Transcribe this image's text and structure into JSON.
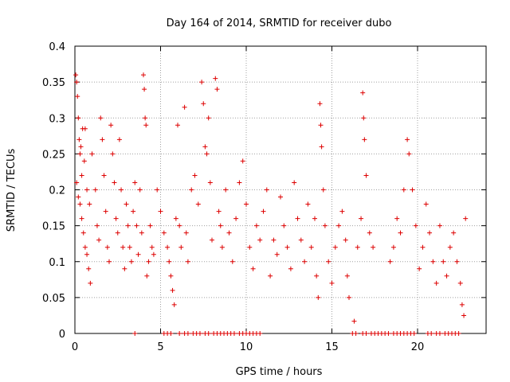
{
  "chart_data": {
    "type": "scatter",
    "title": "Day 164 of 2014, SRMTID for receiver dubo",
    "xlabel": "GPS time / hours",
    "ylabel": "SRMTID / TECUs",
    "xlim": [
      0,
      24
    ],
    "ylim": [
      0,
      0.4
    ],
    "x_ticks": [
      0,
      5,
      10,
      15,
      20
    ],
    "x_tick_labels": [
      "0",
      "5",
      "10",
      "15",
      "20"
    ],
    "y_ticks": [
      0,
      0.05,
      0.1,
      0.15,
      0.2,
      0.25,
      0.3,
      0.35,
      0.4
    ],
    "y_tick_labels": [
      "0",
      "0.05",
      "0.1",
      "0.15",
      "0.2",
      "0.25",
      "0.3",
      "0.35",
      "0.4"
    ],
    "grid": true,
    "marker": "plus",
    "series": [
      {
        "name": "SRMTID",
        "color": "#dd0000",
        "points": [
          [
            0.05,
            0.36
          ],
          [
            0.1,
            0.35
          ],
          [
            0.15,
            0.33
          ],
          [
            0.2,
            0.3
          ],
          [
            0.25,
            0.27
          ],
          [
            0.3,
            0.25
          ],
          [
            0.35,
            0.26
          ],
          [
            0.45,
            0.285
          ],
          [
            0.6,
            0.285
          ],
          [
            0.1,
            0.21
          ],
          [
            0.2,
            0.19
          ],
          [
            0.3,
            0.18
          ],
          [
            0.4,
            0.16
          ],
          [
            0.5,
            0.14
          ],
          [
            0.6,
            0.12
          ],
          [
            0.7,
            0.11
          ],
          [
            0.8,
            0.09
          ],
          [
            0.9,
            0.07
          ],
          [
            0.4,
            0.22
          ],
          [
            0.55,
            0.24
          ],
          [
            0.7,
            0.2
          ],
          [
            0.85,
            0.18
          ],
          [
            1.0,
            0.25
          ],
          [
            1.2,
            0.2
          ],
          [
            1.3,
            0.15
          ],
          [
            1.4,
            0.13
          ],
          [
            1.5,
            0.3
          ],
          [
            1.6,
            0.27
          ],
          [
            1.7,
            0.22
          ],
          [
            1.8,
            0.17
          ],
          [
            1.9,
            0.12
          ],
          [
            2.0,
            0.1
          ],
          [
            2.1,
            0.29
          ],
          [
            2.2,
            0.25
          ],
          [
            2.3,
            0.21
          ],
          [
            2.4,
            0.16
          ],
          [
            2.5,
            0.14
          ],
          [
            2.6,
            0.27
          ],
          [
            2.7,
            0.2
          ],
          [
            2.8,
            0.12
          ],
          [
            2.9,
            0.09
          ],
          [
            3.0,
            0.18
          ],
          [
            3.1,
            0.15
          ],
          [
            3.2,
            0.12
          ],
          [
            3.3,
            0.1
          ],
          [
            3.4,
            0.17
          ],
          [
            3.5,
            0.21
          ],
          [
            3.6,
            0.15
          ],
          [
            3.7,
            0.11
          ],
          [
            3.8,
            0.2
          ],
          [
            3.9,
            0.14
          ],
          [
            4.0,
            0.36
          ],
          [
            4.05,
            0.34
          ],
          [
            4.1,
            0.3
          ],
          [
            4.15,
            0.29
          ],
          [
            4.2,
            0.08
          ],
          [
            4.3,
            0.1
          ],
          [
            4.4,
            0.15
          ],
          [
            4.5,
            0.12
          ],
          [
            4.6,
            0.11
          ],
          [
            4.8,
            0.2
          ],
          [
            5.0,
            0.17
          ],
          [
            5.2,
            0.14
          ],
          [
            5.4,
            0.12
          ],
          [
            5.5,
            0.1
          ],
          [
            5.6,
            0.08
          ],
          [
            5.7,
            0.06
          ],
          [
            5.8,
            0.04
          ],
          [
            5.9,
            0.16
          ],
          [
            6.0,
            0.29
          ],
          [
            6.1,
            0.15
          ],
          [
            6.2,
            0.12
          ],
          [
            6.4,
            0.315
          ],
          [
            6.5,
            0.14
          ],
          [
            6.6,
            0.1
          ],
          [
            6.8,
            0.2
          ],
          [
            7.0,
            0.22
          ],
          [
            7.2,
            0.18
          ],
          [
            7.4,
            0.35
          ],
          [
            7.5,
            0.32
          ],
          [
            7.6,
            0.26
          ],
          [
            7.7,
            0.25
          ],
          [
            7.8,
            0.3
          ],
          [
            7.9,
            0.21
          ],
          [
            8.0,
            0.13
          ],
          [
            8.2,
            0.355
          ],
          [
            8.3,
            0.34
          ],
          [
            8.4,
            0.17
          ],
          [
            8.5,
            0.15
          ],
          [
            8.6,
            0.12
          ],
          [
            8.8,
            0.2
          ],
          [
            9.0,
            0.14
          ],
          [
            9.2,
            0.1
          ],
          [
            9.4,
            0.16
          ],
          [
            9.6,
            0.21
          ],
          [
            9.8,
            0.24
          ],
          [
            10.0,
            0.18
          ],
          [
            10.2,
            0.12
          ],
          [
            10.4,
            0.09
          ],
          [
            10.6,
            0.15
          ],
          [
            10.8,
            0.13
          ],
          [
            11.0,
            0.17
          ],
          [
            11.2,
            0.2
          ],
          [
            11.4,
            0.08
          ],
          [
            11.6,
            0.13
          ],
          [
            11.8,
            0.11
          ],
          [
            12.0,
            0.19
          ],
          [
            12.2,
            0.15
          ],
          [
            12.4,
            0.12
          ],
          [
            12.6,
            0.09
          ],
          [
            12.8,
            0.21
          ],
          [
            13.0,
            0.16
          ],
          [
            13.2,
            0.13
          ],
          [
            13.4,
            0.1
          ],
          [
            13.6,
            0.18
          ],
          [
            13.8,
            0.12
          ],
          [
            14.0,
            0.16
          ],
          [
            14.1,
            0.08
          ],
          [
            14.2,
            0.05
          ],
          [
            14.3,
            0.32
          ],
          [
            14.35,
            0.29
          ],
          [
            14.4,
            0.26
          ],
          [
            14.5,
            0.2
          ],
          [
            14.6,
            0.15
          ],
          [
            14.8,
            0.1
          ],
          [
            15.0,
            0.07
          ],
          [
            15.2,
            0.12
          ],
          [
            15.4,
            0.15
          ],
          [
            15.6,
            0.17
          ],
          [
            15.8,
            0.13
          ],
          [
            15.9,
            0.08
          ],
          [
            16.0,
            0.05
          ],
          [
            16.3,
            0.017
          ],
          [
            16.5,
            0.12
          ],
          [
            16.7,
            0.16
          ],
          [
            16.8,
            0.335
          ],
          [
            16.85,
            0.3
          ],
          [
            16.9,
            0.27
          ],
          [
            17.0,
            0.22
          ],
          [
            17.2,
            0.14
          ],
          [
            17.4,
            0.12
          ],
          [
            18.4,
            0.1
          ],
          [
            18.6,
            0.12
          ],
          [
            18.8,
            0.16
          ],
          [
            19.0,
            0.14
          ],
          [
            19.2,
            0.2
          ],
          [
            19.4,
            0.27
          ],
          [
            19.5,
            0.25
          ],
          [
            19.7,
            0.2
          ],
          [
            19.9,
            0.15
          ],
          [
            20.1,
            0.09
          ],
          [
            20.3,
            0.12
          ],
          [
            20.5,
            0.18
          ],
          [
            20.7,
            0.14
          ],
          [
            20.9,
            0.1
          ],
          [
            21.1,
            0.07
          ],
          [
            21.3,
            0.15
          ],
          [
            21.5,
            0.1
          ],
          [
            21.7,
            0.08
          ],
          [
            21.9,
            0.12
          ],
          [
            22.1,
            0.14
          ],
          [
            22.3,
            0.1
          ],
          [
            22.5,
            0.07
          ],
          [
            22.6,
            0.04
          ],
          [
            22.7,
            0.025
          ],
          [
            22.8,
            0.16
          ],
          [
            3.5,
            0.0
          ],
          [
            5.2,
            0.0
          ],
          [
            5.4,
            0.0
          ],
          [
            5.6,
            0.0
          ],
          [
            6.1,
            0.0
          ],
          [
            6.4,
            0.0
          ],
          [
            6.6,
            0.0
          ],
          [
            6.9,
            0.0
          ],
          [
            7.1,
            0.0
          ],
          [
            7.3,
            0.0
          ],
          [
            7.6,
            0.0
          ],
          [
            7.8,
            0.0
          ],
          [
            8.1,
            0.0
          ],
          [
            8.3,
            0.0
          ],
          [
            8.5,
            0.0
          ],
          [
            8.7,
            0.0
          ],
          [
            8.9,
            0.0
          ],
          [
            9.1,
            0.0
          ],
          [
            9.3,
            0.0
          ],
          [
            9.6,
            0.0
          ],
          [
            9.8,
            0.0
          ],
          [
            10.0,
            0.0
          ],
          [
            10.2,
            0.0
          ],
          [
            10.4,
            0.0
          ],
          [
            10.6,
            0.0
          ],
          [
            10.8,
            0.0
          ],
          [
            16.2,
            0.0
          ],
          [
            16.4,
            0.0
          ],
          [
            16.8,
            0.0
          ],
          [
            17.0,
            0.0
          ],
          [
            17.3,
            0.0
          ],
          [
            17.5,
            0.0
          ],
          [
            17.7,
            0.0
          ],
          [
            17.9,
            0.0
          ],
          [
            18.1,
            0.0
          ],
          [
            18.3,
            0.0
          ],
          [
            18.6,
            0.0
          ],
          [
            18.8,
            0.0
          ],
          [
            19.0,
            0.0
          ],
          [
            19.2,
            0.0
          ],
          [
            19.4,
            0.0
          ],
          [
            19.6,
            0.0
          ],
          [
            19.8,
            0.0
          ],
          [
            20.6,
            0.0
          ],
          [
            20.8,
            0.0
          ],
          [
            21.1,
            0.0
          ],
          [
            21.3,
            0.0
          ],
          [
            21.6,
            0.0
          ],
          [
            21.8,
            0.0
          ],
          [
            22.0,
            0.0
          ],
          [
            22.2,
            0.0
          ],
          [
            22.4,
            0.0
          ]
        ]
      }
    ]
  }
}
